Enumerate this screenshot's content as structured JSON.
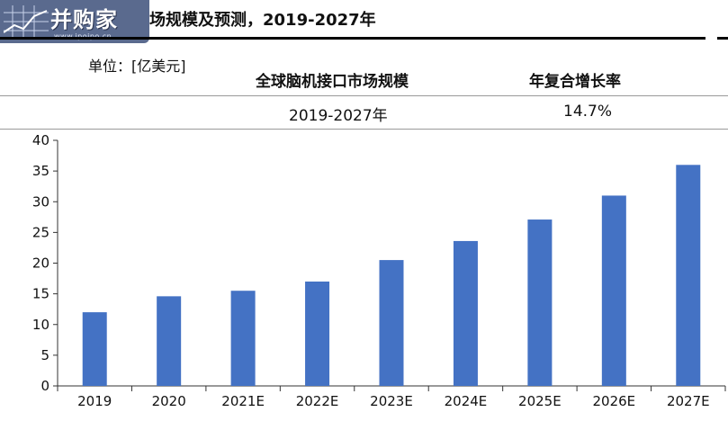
{
  "logo": {
    "text": "并购家",
    "url": "www.ipoipo.cn"
  },
  "title": "场规模及预测，2019-2027年",
  "unit_label": "单位：[亿美元]",
  "table": {
    "headers": [
      "全球脑机接口市场规模",
      "年复合增长率"
    ],
    "row": [
      "2019-2027年",
      "14.7%"
    ]
  },
  "colors": {
    "bar": "#4472C4",
    "axis": "#333333"
  },
  "chart_data": {
    "type": "bar",
    "categories": [
      "2019",
      "2020",
      "2021E",
      "2022E",
      "2023E",
      "2024E",
      "2025E",
      "2026E",
      "2027E"
    ],
    "values": [
      12.0,
      14.6,
      15.5,
      17.0,
      20.5,
      23.6,
      27.1,
      31.0,
      36.0
    ],
    "ylim": [
      0,
      40
    ],
    "yticks": [
      0,
      5,
      10,
      15,
      20,
      25,
      30,
      35,
      40
    ],
    "ytick_labels": [
      "0",
      "5",
      "10",
      "15",
      "20",
      "25",
      "30",
      "35",
      "40"
    ],
    "grid": false,
    "title": "",
    "xlabel": "",
    "ylabel": ""
  }
}
